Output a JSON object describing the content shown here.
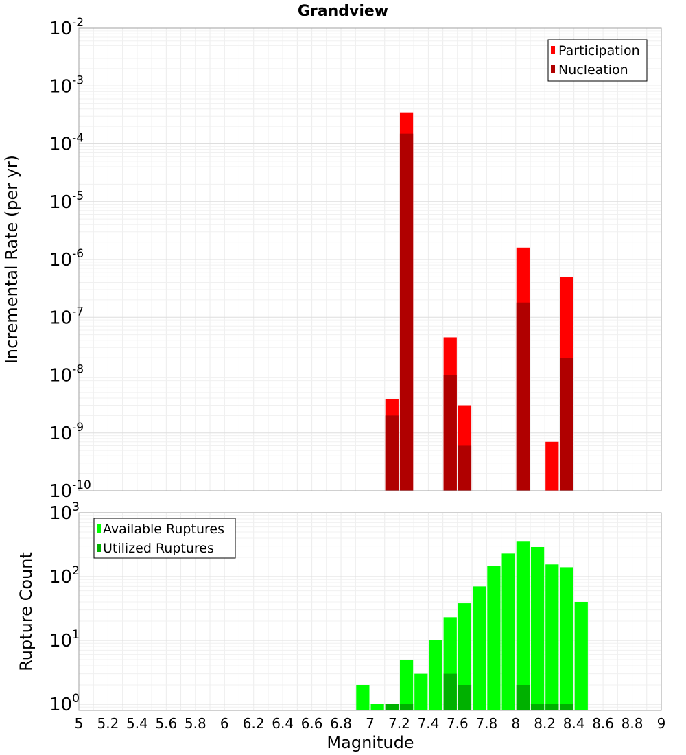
{
  "chart_data": [
    {
      "type": "bar",
      "title": "Grandview",
      "ylabel": "Incremental Rate (per yr)",
      "yscale": "log",
      "ylim": [
        1e-10,
        0.01
      ],
      "xlim": [
        5,
        9
      ],
      "bar_width": 0.1,
      "overlay": true,
      "grid": true,
      "legend_position": "top-right",
      "y_tick_labels": [
        {
          "base": "10",
          "exp": "-10"
        },
        {
          "base": "10",
          "exp": "-9"
        },
        {
          "base": "10",
          "exp": "-8"
        },
        {
          "base": "10",
          "exp": "-7"
        },
        {
          "base": "10",
          "exp": "-6"
        },
        {
          "base": "10",
          "exp": "-5"
        },
        {
          "base": "10",
          "exp": "-4"
        },
        {
          "base": "10",
          "exp": "-3"
        },
        {
          "base": "10",
          "exp": "-2"
        }
      ],
      "series": [
        {
          "name": "Participation",
          "color": "#ff0000",
          "x": [
            7.15,
            7.25,
            7.55,
            7.65,
            8.05,
            8.25,
            8.35
          ],
          "values": [
            3.8e-09,
            0.00035,
            4.5e-08,
            3e-09,
            1.6e-06,
            7e-10,
            5e-07
          ]
        },
        {
          "name": "Nucleation",
          "color": "#b00000",
          "x": [
            7.15,
            7.25,
            7.55,
            7.65,
            8.05,
            8.35
          ],
          "values": [
            2e-09,
            0.00015,
            1e-08,
            6e-10,
            1.8e-07,
            2e-08
          ]
        }
      ]
    },
    {
      "type": "bar",
      "ylabel": "Rupture Count",
      "xlabel": "Magnitude",
      "yscale": "log",
      "ylim": [
        0.8,
        1000
      ],
      "xlim": [
        5,
        9
      ],
      "bar_width": 0.1,
      "overlay": true,
      "grid": true,
      "legend_position": "top-left",
      "x_tick_labels": [
        "5",
        "5.2",
        "5.4",
        "5.6",
        "5.8",
        "6",
        "6.2",
        "6.4",
        "6.6",
        "6.8",
        "7",
        "7.2",
        "7.4",
        "7.6",
        "7.8",
        "8",
        "8.2",
        "8.4",
        "8.6",
        "8.8",
        "9"
      ],
      "y_tick_labels": [
        {
          "base": "10",
          "exp": "0"
        },
        {
          "base": "10",
          "exp": "1"
        },
        {
          "base": "10",
          "exp": "2"
        },
        {
          "base": "10",
          "exp": "3"
        }
      ],
      "series": [
        {
          "name": "Available Ruptures",
          "color": "#00ff00",
          "x": [
            6.95,
            7.05,
            7.15,
            7.25,
            7.35,
            7.45,
            7.55,
            7.65,
            7.75,
            7.85,
            7.95,
            8.05,
            8.15,
            8.25,
            8.35,
            8.45
          ],
          "values": [
            2,
            1,
            1,
            5,
            3,
            10,
            23,
            38,
            70,
            145,
            230,
            360,
            290,
            155,
            140,
            40
          ]
        },
        {
          "name": "Utilized Ruptures",
          "color": "#00b000",
          "x": [
            7.15,
            7.25,
            7.55,
            7.65,
            8.05,
            8.15,
            8.25,
            8.35
          ],
          "values": [
            1,
            1,
            3,
            2,
            2,
            1,
            1,
            1
          ]
        }
      ]
    }
  ]
}
